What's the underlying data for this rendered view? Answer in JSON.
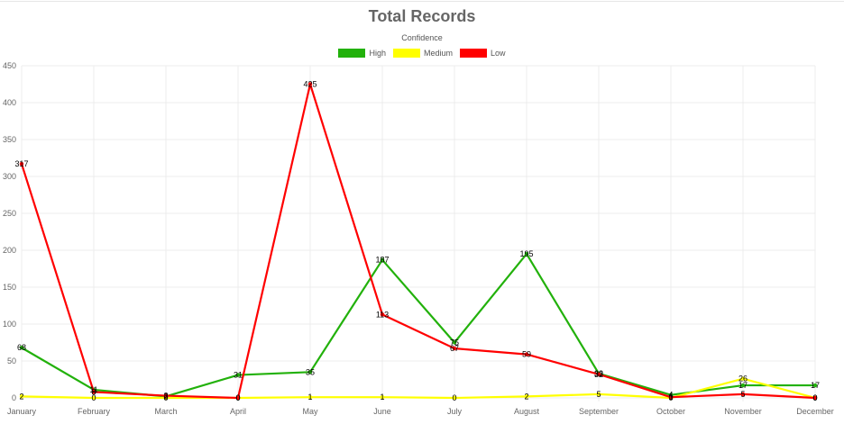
{
  "chart_data": {
    "type": "line",
    "title": "Total Records",
    "legend_title": "Confidence",
    "legend_position": "top",
    "grid": true,
    "xlabel": "",
    "ylabel": "",
    "ylim": [
      0,
      450
    ],
    "yticks": [
      "0",
      "50",
      "100",
      "150",
      "200",
      "250",
      "300",
      "350",
      "400",
      "450"
    ],
    "categories": [
      "January",
      "February",
      "March",
      "April",
      "May",
      "June",
      "July",
      "August",
      "September",
      "October",
      "November",
      "December"
    ],
    "series": [
      {
        "name": "High",
        "color": "#22b10b",
        "values": [
          68,
          11,
          2,
          31,
          35,
          187,
          75,
          195,
          33,
          4,
          17,
          17
        ]
      },
      {
        "name": "Medium",
        "color": "#ffff00",
        "values": [
          2,
          0,
          0,
          0,
          1,
          1,
          0,
          2,
          5,
          0,
          26,
          0
        ]
      },
      {
        "name": "Low",
        "color": "#ff0000",
        "values": [
          317,
          8,
          3,
          0,
          425,
          113,
          67,
          59,
          32,
          1,
          5,
          0
        ]
      }
    ]
  }
}
